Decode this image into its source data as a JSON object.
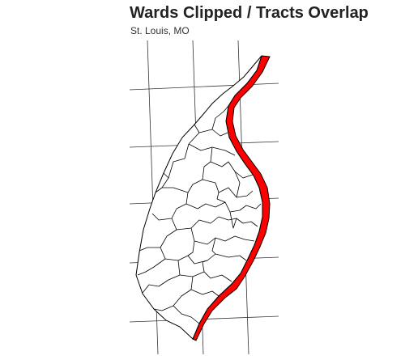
{
  "title": "Wards Clipped / Tracts Overlap",
  "subtitle": "St. Louis, MO",
  "colors": {
    "background": "#ffffff",
    "graticule": "#333333",
    "boundary": "#000000",
    "overlap_fill": "#ff0000"
  },
  "legend": []
}
